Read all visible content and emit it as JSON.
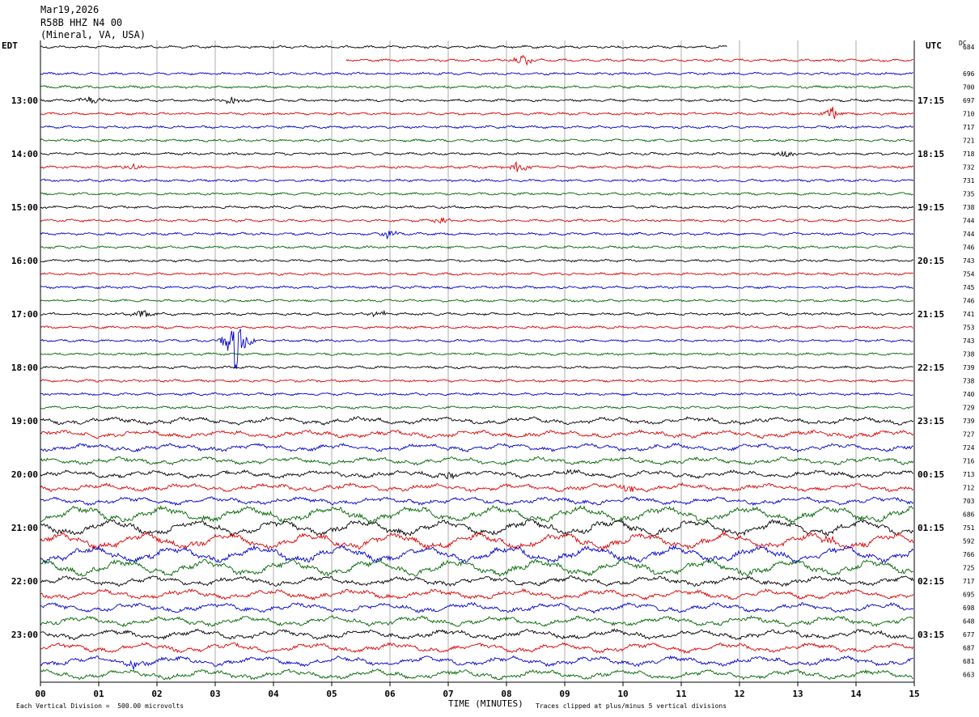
{
  "header": {
    "date": "Mar19,2026",
    "station": "R58B HHZ N4 00",
    "location": "(Mineral, VA, USA)"
  },
  "left_zone": "EDT",
  "right_zone": "UTC",
  "dc_header": "DC",
  "footer": {
    "scale_note": "Each Vertical Division =  500.00 microvolts",
    "xlabel": "TIME (MINUTES)",
    "clip_note": "Traces clipped at plus/minus 5 vertical divisions"
  },
  "colors": {
    "traces": [
      "#000000",
      "#dd0000",
      "#0000cc",
      "#006600"
    ],
    "grid": "#888888"
  },
  "chart_data": {
    "type": "line",
    "xlabel": "TIME (MINUTES)",
    "xlim": [
      0,
      15
    ],
    "x_ticks": [
      "00",
      "01",
      "02",
      "03",
      "04",
      "05",
      "06",
      "07",
      "08",
      "09",
      "10",
      "11",
      "12",
      "13",
      "14",
      "15"
    ],
    "left_hour_labels": [
      "13:00",
      "14:00",
      "15:00",
      "16:00",
      "17:00",
      "18:00",
      "19:00",
      "20:00",
      "21:00",
      "22:00",
      "23:00"
    ],
    "right_hour_labels": [
      "17:15",
      "18:15",
      "19:15",
      "20:15",
      "21:15",
      "22:15",
      "23:15",
      "00:15",
      "01:15",
      "02:15",
      "03:15"
    ],
    "trace_dc_values": [
      "684",
      "",
      "696",
      "700",
      "697",
      "710",
      "717",
      "721",
      "718",
      "732",
      "731",
      "735",
      "738",
      "744",
      "744",
      "746",
      "743",
      "754",
      "745",
      "746",
      "741",
      "753",
      "743",
      "738",
      "739",
      "738",
      "740",
      "729",
      "739",
      "727",
      "724",
      "716",
      "713",
      "712",
      "703",
      "686",
      "751",
      "592",
      "766",
      "725",
      "717",
      "695",
      "698",
      "648",
      "677",
      "687",
      "681",
      "663"
    ],
    "trace_count": 48,
    "first_trace_end_minute": 11.8,
    "second_trace_start_minute": 5.25,
    "events": [
      {
        "trace": 1,
        "minute": 8.3,
        "amp": 8
      },
      {
        "trace": 4,
        "minute": 0.85,
        "amp": 8
      },
      {
        "trace": 4,
        "minute": 3.3,
        "amp": 6
      },
      {
        "trace": 5,
        "minute": 13.6,
        "amp": 9
      },
      {
        "trace": 8,
        "minute": 12.8,
        "amp": 5
      },
      {
        "trace": 9,
        "minute": 1.6,
        "amp": 5
      },
      {
        "trace": 9,
        "minute": 8.2,
        "amp": 8
      },
      {
        "trace": 13,
        "minute": 6.9,
        "amp": 6
      },
      {
        "trace": 14,
        "minute": 5.95,
        "amp": 6
      },
      {
        "trace": 20,
        "minute": 1.75,
        "amp": 7
      },
      {
        "trace": 20,
        "minute": 5.8,
        "amp": 5
      },
      {
        "trace": 22,
        "minute": 3.35,
        "amp": 42
      },
      {
        "trace": 32,
        "minute": 7.0,
        "amp": 7
      },
      {
        "trace": 32,
        "minute": 9.1,
        "amp": 5
      },
      {
        "trace": 33,
        "minute": 10.1,
        "amp": 6
      },
      {
        "trace": 37,
        "minute": 13.55,
        "amp": 6
      },
      {
        "trace": 46,
        "minute": 1.6,
        "amp": 6
      }
    ]
  }
}
